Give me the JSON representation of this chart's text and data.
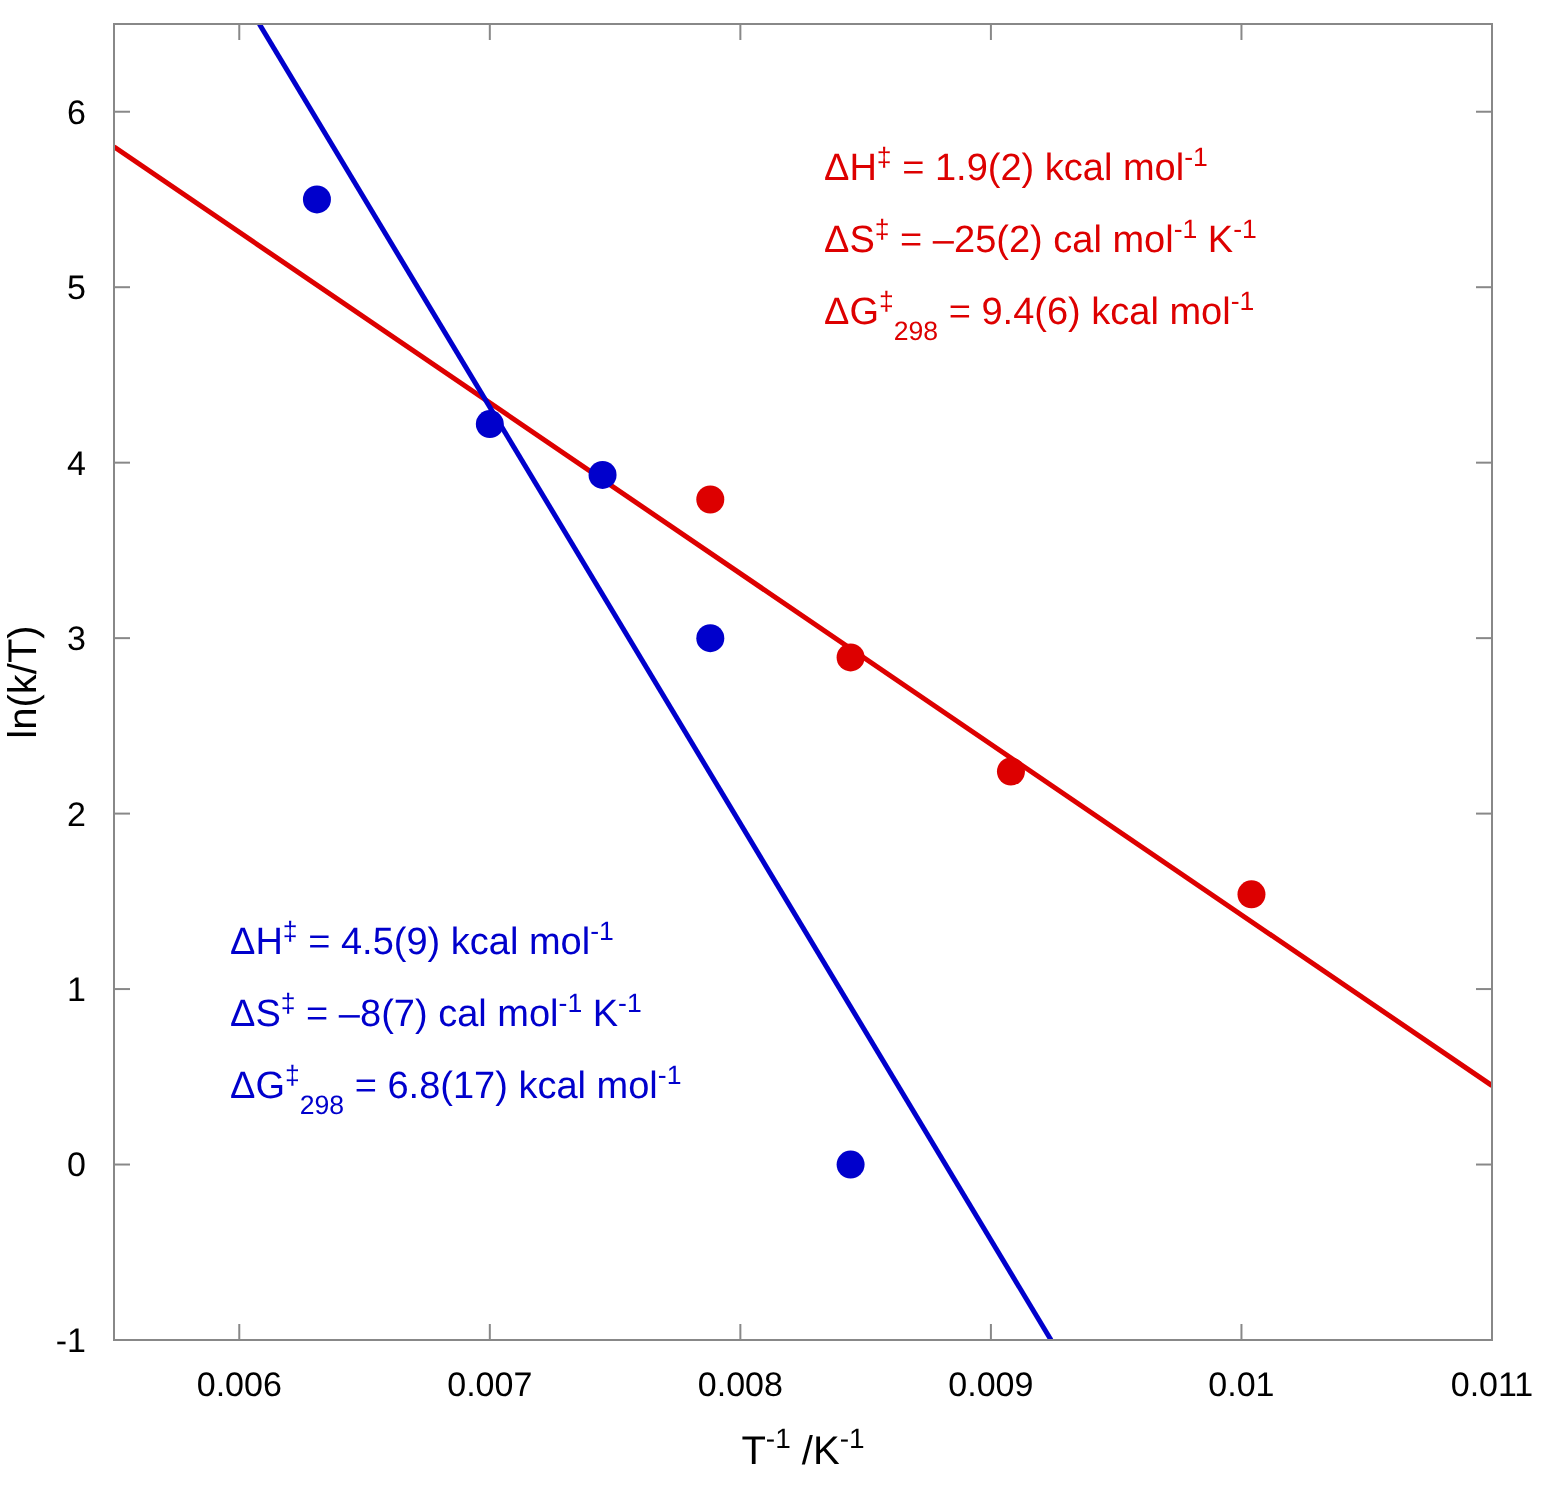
{
  "chart_data": {
    "type": "scatter",
    "xlabel": "T$^{-1}$ /K$^{-1}$",
    "ylabel": "ln(k/T)",
    "xlim": [
      0.0055,
      0.011
    ],
    "ylim": [
      -1,
      6.5
    ],
    "xticks": [
      0.006,
      0.007,
      0.008,
      0.009,
      0.01,
      0.011
    ],
    "yticks": [
      -1,
      0,
      1,
      2,
      3,
      4,
      5,
      6
    ],
    "grid": false,
    "marker": "circle",
    "series": [
      {
        "type": "line",
        "marker": "none",
        "color": "#dd0000",
        "x": [
          0.0055,
          0.011
        ],
        "values": [
          5.8,
          0.45
        ]
      },
      {
        "type": "line",
        "marker": "none",
        "color": "#0000cc",
        "x": [
          0.00608,
          0.00924
        ],
        "values": [
          6.5,
          -1
        ]
      },
      {
        "color": "#0000cc",
        "x": [
          0.00631,
          0.007,
          0.00745,
          0.00788,
          0.00844
        ],
        "values": [
          5.5,
          4.22,
          3.93,
          3.0,
          0.0
        ]
      },
      {
        "color": "#dd0000",
        "x": [
          0.00788,
          0.00844,
          0.00908,
          0.01004
        ],
        "values": [
          3.79,
          2.89,
          2.24,
          1.54
        ]
      }
    ],
    "annotations": [
      "ΔH$^{‡}$  = 1.9(2) kcal mol$^{-1}$",
      "ΔS$^{‡}$ = –25(2) cal mol$^{-1}$ K$^{-1}$",
      "ΔG$^{‡}$$_{298}$ = 9.4(6) kcal mol$^{-1}$",
      "ΔH$^{‡}$  = 4.5(9) kcal mol$^{-1}$",
      "ΔS$^{‡}$ = –8(7) cal mol$^{-1}$ K$^{-1}$",
      "ΔG$^{‡}$$_{298}$ = 6.8(17) kcal mol$^{-1}$"
    ]
  }
}
